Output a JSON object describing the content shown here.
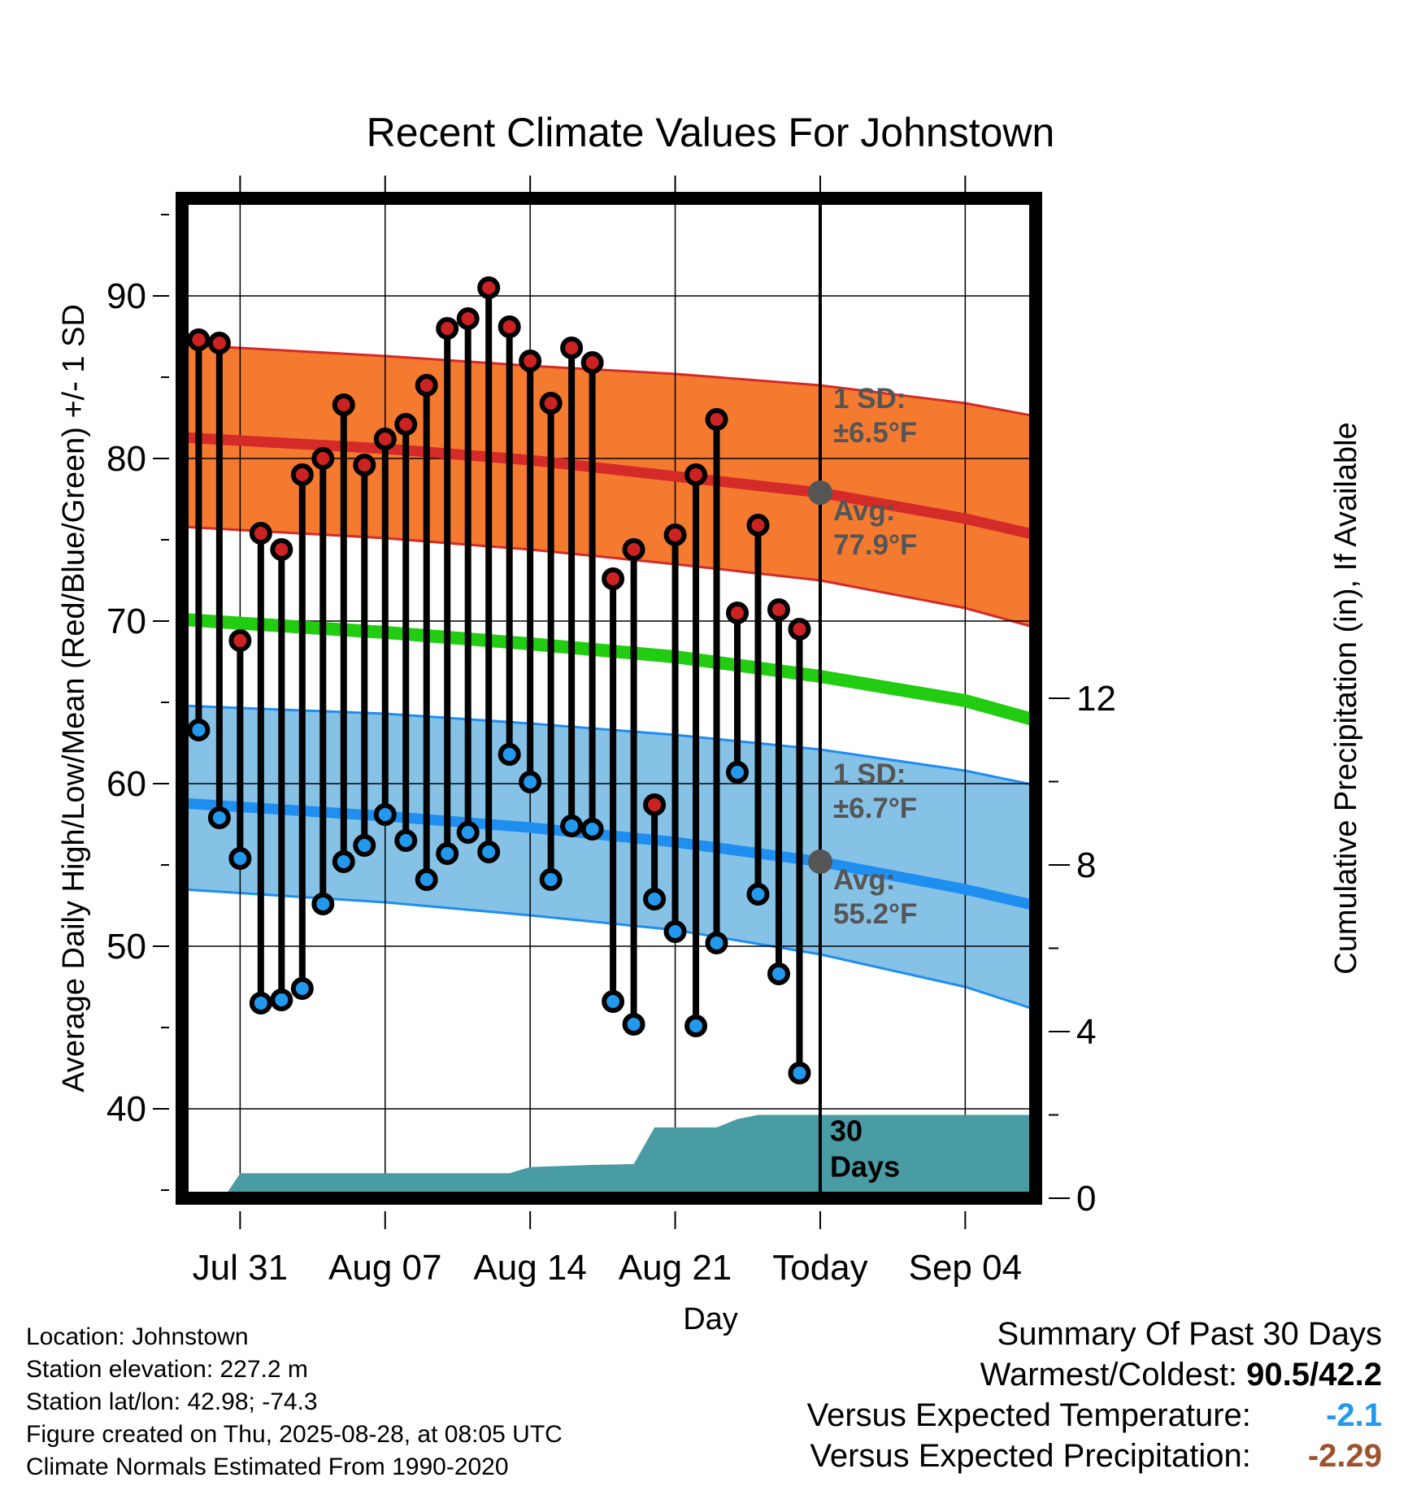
{
  "meta": {
    "location": "Location: Johnstown",
    "elevation": "Station elevation: 227.2 m",
    "latlon": "Station lat/lon: 42.98; -74.3",
    "created": "Figure created on Thu, 2025-08-28, at 08:05 UTC",
    "normals": "Climate Normals Estimated From 1990-2020"
  },
  "summary": {
    "heading": "Summary Of Past 30 Days",
    "warm_cold_label": "Warmest/Coldest:",
    "warm_cold_value": "90.5/42.2",
    "temp_label": "Versus Expected Temperature:",
    "temp_value": "-2.1",
    "precip_label": "Versus Expected Precipitation:",
    "precip_value": "-2.29"
  },
  "colors": {
    "high_marker": "#cc2222",
    "low_marker": "#2299ee",
    "high_band": "#f47a30",
    "high_mean": "#d42a28",
    "low_band": "#86c1e6",
    "low_mean": "#1e8ef0",
    "mean_line": "#22cc11",
    "precip": "#4a9ca4",
    "summary_temp": "#2299ee",
    "summary_precip": "#a0522d"
  },
  "chart_data": {
    "type": "line",
    "title": "Recent Climate Values For Johnstown",
    "xlabel": "Day",
    "ylabel": "Average Daily High/Low/Mean (Red/Blue/Green) +/- 1 SD",
    "y2label": "Cumulative Precipitation (in), If Available",
    "x_ticks": [
      {
        "day": 3,
        "label": "Jul 31"
      },
      {
        "day": 10,
        "label": "Aug 07"
      },
      {
        "day": 17,
        "label": "Aug 14"
      },
      {
        "day": 24,
        "label": "Aug 21"
      },
      {
        "day": 31,
        "label": "Today"
      },
      {
        "day": 38,
        "label": "Sep 04"
      }
    ],
    "xlim": [
      0.2,
      41.4
    ],
    "ylim": [
      34.5,
      96
    ],
    "y_ticks": [
      40,
      50,
      60,
      70,
      80,
      90
    ],
    "y2lim": [
      0,
      24
    ],
    "y2_ticks": [
      0,
      4,
      8,
      12
    ],
    "today_day": 31,
    "daily": [
      {
        "day": 1,
        "high": 87.3,
        "low": 63.3
      },
      {
        "day": 2,
        "high": 87.1,
        "low": 57.9
      },
      {
        "day": 3,
        "high": 68.8,
        "low": 55.4
      },
      {
        "day": 4,
        "high": 75.4,
        "low": 46.5
      },
      {
        "day": 5,
        "high": 74.4,
        "low": 46.7
      },
      {
        "day": 6,
        "high": 79.0,
        "low": 47.4
      },
      {
        "day": 7,
        "high": 80.0,
        "low": 52.6
      },
      {
        "day": 8,
        "high": 83.3,
        "low": 55.2
      },
      {
        "day": 9,
        "high": 79.6,
        "low": 56.2
      },
      {
        "day": 10,
        "high": 81.2,
        "low": 58.1
      },
      {
        "day": 11,
        "high": 82.1,
        "low": 56.5
      },
      {
        "day": 12,
        "high": 84.5,
        "low": 54.1
      },
      {
        "day": 13,
        "high": 88.0,
        "low": 55.7
      },
      {
        "day": 14,
        "high": 88.6,
        "low": 57.0
      },
      {
        "day": 15,
        "high": 90.5,
        "low": 55.8
      },
      {
        "day": 16,
        "high": 88.1,
        "low": 61.8
      },
      {
        "day": 17,
        "high": 86.0,
        "low": 60.1
      },
      {
        "day": 18,
        "high": 83.4,
        "low": 54.1
      },
      {
        "day": 19,
        "high": 86.8,
        "low": 57.4
      },
      {
        "day": 20,
        "high": 85.9,
        "low": 57.2
      },
      {
        "day": 21,
        "high": 72.6,
        "low": 46.6
      },
      {
        "day": 22,
        "high": 74.4,
        "low": 45.2
      },
      {
        "day": 23,
        "high": 58.7,
        "low": 52.9
      },
      {
        "day": 24,
        "high": 75.3,
        "low": 50.9
      },
      {
        "day": 25,
        "high": 79.0,
        "low": 45.1
      },
      {
        "day": 26,
        "high": 82.4,
        "low": 50.2
      },
      {
        "day": 27,
        "high": 70.5,
        "low": 60.7
      },
      {
        "day": 28,
        "high": 75.9,
        "low": 53.2
      },
      {
        "day": 29,
        "high": 70.7,
        "low": 48.3
      },
      {
        "day": 30,
        "high": 69.5,
        "low": 42.2
      }
    ],
    "normal_high": {
      "days": [
        0.2,
        10,
        17,
        24,
        31,
        38,
        41.4
      ],
      "mean": [
        81.3,
        80.6,
        79.9,
        78.9,
        77.9,
        76.3,
        75.3
      ],
      "upper": [
        87.0,
        86.3,
        85.7,
        85.2,
        84.5,
        83.4,
        82.6
      ],
      "lower": [
        75.8,
        75.1,
        74.4,
        73.5,
        72.5,
        70.8,
        69.6
      ]
    },
    "normal_mean": {
      "days": [
        0.2,
        10,
        17,
        24,
        31,
        38,
        41.4
      ],
      "values": [
        70.1,
        69.3,
        68.6,
        67.8,
        66.6,
        65.1,
        63.9
      ]
    },
    "normal_low": {
      "days": [
        0.2,
        10,
        17,
        24,
        31,
        38,
        41.4
      ],
      "mean": [
        58.8,
        58.0,
        57.3,
        56.4,
        55.2,
        53.5,
        52.5
      ],
      "upper": [
        64.8,
        64.3,
        63.7,
        63.0,
        62.1,
        60.8,
        59.9
      ],
      "lower": [
        53.5,
        52.7,
        51.9,
        51.0,
        49.5,
        47.5,
        46.1
      ]
    },
    "precip_cumulative": {
      "days": [
        0.2,
        2.2,
        3,
        16,
        17,
        20,
        22,
        23,
        26,
        27,
        28,
        41.4
      ],
      "values": [
        0,
        0,
        0.6,
        0.6,
        0.75,
        0.8,
        0.82,
        1.7,
        1.7,
        1.9,
        2.0,
        2.0
      ]
    },
    "annotations": {
      "high_sd_label": "1 SD:",
      "high_sd_value": "±6.5°F",
      "high_avg_label": "Avg:",
      "high_avg_value": "77.9°F",
      "low_sd_label": "1 SD:",
      "low_sd_value": "±6.7°F",
      "low_avg_label": "Avg:",
      "low_avg_value": "55.2°F",
      "days_count": "30",
      "days_word": "Days"
    }
  }
}
